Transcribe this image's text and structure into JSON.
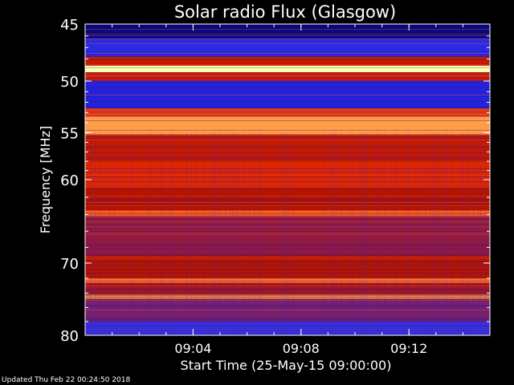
{
  "chart_data": {
    "type": "heatmap",
    "title": "Solar radio Flux (Glasgow)",
    "xlabel": "Start Time (25-May-15 09:00:00)",
    "ylabel": "Frequency [MHz]",
    "x_ticks": [
      "09:04",
      "09:08",
      "09:12"
    ],
    "y_ticks": [
      45,
      50,
      55,
      60,
      70,
      80
    ],
    "xlim": [
      "09:00",
      "09:15"
    ],
    "ylim": [
      45,
      80
    ],
    "y_scale": "log",
    "colormap": [
      "#000033",
      "#1010c8",
      "#3030e8",
      "#5a2a9a",
      "#8a1a50",
      "#b41400",
      "#d82000",
      "#f04010",
      "#ff7830",
      "#ffc060",
      "#ffffb0"
    ],
    "bands": [
      {
        "freq": [
          45.0,
          46.2
        ],
        "level": 0.05
      },
      {
        "freq": [
          46.2,
          47.8
        ],
        "level": 0.18
      },
      {
        "freq": [
          47.8,
          48.6
        ],
        "level": 0.55
      },
      {
        "freq": [
          48.6,
          49.2
        ],
        "level": 1.0
      },
      {
        "freq": [
          49.2,
          50.0
        ],
        "level": 0.6
      },
      {
        "freq": [
          50.0,
          52.6
        ],
        "level": 0.16
      },
      {
        "freq": [
          52.6,
          53.4
        ],
        "level": 0.7
      },
      {
        "freq": [
          53.4,
          55.2
        ],
        "level": 0.85
      },
      {
        "freq": [
          55.2,
          58.0
        ],
        "level": 0.55
      },
      {
        "freq": [
          58.0,
          61.0
        ],
        "level": 0.62
      },
      {
        "freq": [
          61.0,
          63.5
        ],
        "level": 0.5
      },
      {
        "freq": [
          63.5,
          64.2
        ],
        "level": 0.75
      },
      {
        "freq": [
          64.2,
          69.0
        ],
        "level": 0.42
      },
      {
        "freq": [
          69.0,
          72.0
        ],
        "level": 0.5
      },
      {
        "freq": [
          72.0,
          72.6
        ],
        "level": 0.78
      },
      {
        "freq": [
          72.6,
          74.2
        ],
        "level": 0.46
      },
      {
        "freq": [
          74.2,
          74.8
        ],
        "level": 0.82
      },
      {
        "freq": [
          74.8,
          78.0
        ],
        "level": 0.36
      },
      {
        "freq": [
          78.0,
          80.0
        ],
        "level": 0.22
      }
    ]
  },
  "footer": {
    "updated": "Updated Thu Feb 22 00:24:50 2018"
  }
}
